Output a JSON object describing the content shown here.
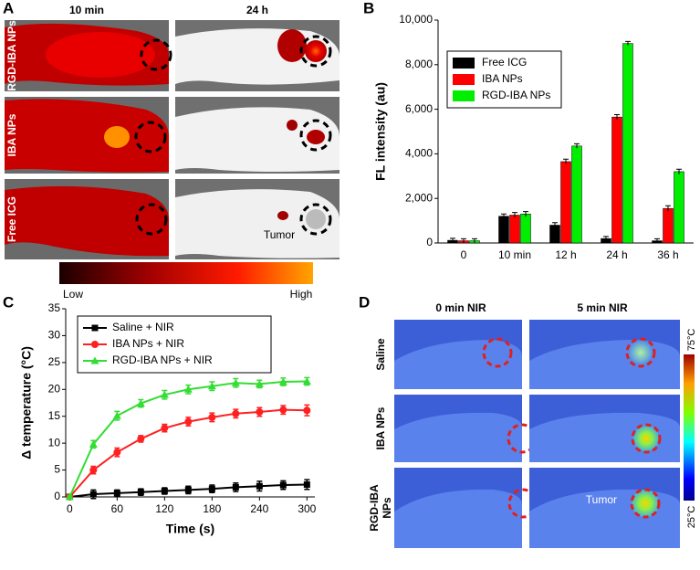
{
  "panels": {
    "a": {
      "letter": "A",
      "col_headers": [
        "10 min",
        "24 h"
      ],
      "row_labels": [
        "RGD-IBA NPs",
        "IBA NPs",
        "Free ICG"
      ],
      "annotation": "Tumor",
      "scale_low": "Low",
      "scale_high": "High"
    },
    "b": {
      "letter": "B"
    },
    "c": {
      "letter": "C"
    },
    "d": {
      "letter": "D",
      "col_headers": [
        "0 min NIR",
        "5 min NIR"
      ],
      "row_labels": [
        "Saline",
        "IBA NPs",
        "RGD-IBA",
        "NPs"
      ],
      "annotation": "Tumor",
      "scale_high": "75°C",
      "scale_low": "25°C"
    }
  },
  "chart_data": [
    {
      "type": "bar",
      "ylabel": "FL intensity (au)",
      "categories": [
        "0",
        "10 min",
        "12 h",
        "24 h",
        "36 h"
      ],
      "series": [
        {
          "name": "Free ICG",
          "color": "#000000",
          "values": [
            120,
            1200,
            800,
            200,
            100
          ],
          "errors": [
            90,
            100,
            110,
            90,
            90
          ]
        },
        {
          "name": "IBA NPs",
          "color": "#ff0000",
          "values": [
            100,
            1250,
            3650,
            5650,
            1550
          ],
          "errors": [
            90,
            120,
            110,
            110,
            120
          ]
        },
        {
          "name": "RGD-IBA NPs",
          "color": "#00ee00",
          "values": [
            100,
            1300,
            4350,
            8950,
            3200
          ],
          "errors": [
            90,
            110,
            100,
            90,
            110
          ]
        }
      ],
      "ylim": [
        0,
        10000
      ],
      "yticks": [
        0,
        {
          "value": 2000,
          "label": "2,000"
        },
        {
          "value": 4000,
          "label": "4,000"
        },
        {
          "value": 6000,
          "label": "6,000"
        },
        {
          "value": 8000,
          "label": "8,000"
        },
        {
          "value": 10000,
          "label": "10,000"
        }
      ],
      "legend": "upper left"
    },
    {
      "type": "line",
      "xlabel": "Time (s)",
      "ylabel": "Δ temperature (°C)",
      "x": [
        0,
        30,
        60,
        90,
        120,
        150,
        180,
        210,
        240,
        270,
        300
      ],
      "series": [
        {
          "name": "Saline + NIR",
          "color": "#000000",
          "marker": "square",
          "values": [
            0,
            0.5,
            0.7,
            0.9,
            1.1,
            1.3,
            1.5,
            1.8,
            2.0,
            2.2,
            2.3
          ],
          "errors": [
            0.2,
            0.8,
            0.6,
            0.6,
            0.6,
            0.7,
            0.7,
            0.8,
            0.9,
            0.8,
            0.9
          ]
        },
        {
          "name": "IBA NPs + NIR",
          "color": "#ff2020",
          "marker": "circle",
          "values": [
            0,
            5,
            8.3,
            10.8,
            12.8,
            14,
            14.8,
            15.5,
            15.8,
            16.2,
            16.1
          ],
          "errors": [
            0.2,
            0.7,
            0.8,
            0.6,
            0.7,
            0.8,
            0.8,
            0.8,
            0.8,
            0.8,
            1.0
          ]
        },
        {
          "name": "RGD-IBA NPs + NIR",
          "color": "#33dd33",
          "marker": "triangle",
          "values": [
            0,
            9.8,
            15.1,
            17.4,
            19,
            20,
            20.6,
            21.2,
            21,
            21.4,
            21.5
          ],
          "errors": [
            0.2,
            0.7,
            0.8,
            0.7,
            0.8,
            0.8,
            0.8,
            0.8,
            0.7,
            0.7,
            0.7
          ]
        }
      ],
      "xlim": [
        -5,
        310
      ],
      "xticks": [
        0,
        60,
        120,
        180,
        240,
        300
      ],
      "ylim": [
        0,
        35
      ],
      "yticks": [
        0,
        5,
        10,
        15,
        20,
        25,
        30,
        35
      ],
      "legend": "upper left"
    }
  ]
}
